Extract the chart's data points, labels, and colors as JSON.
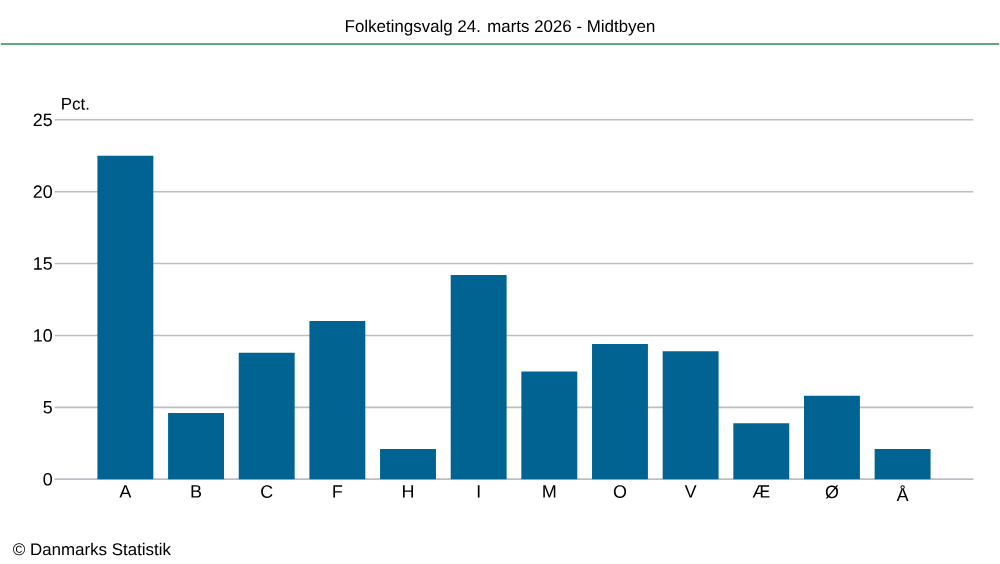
{
  "chart_data": {
    "type": "bar",
    "title": "Folketingsvalg 24. marts 2026 - Midtbyen",
    "ylabel": "Pct.",
    "categories": [
      "A",
      "B",
      "C",
      "F",
      "H",
      "I",
      "M",
      "O",
      "V",
      "Æ",
      "Ø",
      "Å"
    ],
    "values": [
      22.5,
      4.6,
      8.8,
      11.0,
      2.1,
      14.2,
      7.5,
      9.4,
      8.9,
      3.9,
      5.8,
      2.1
    ],
    "color": "#006391",
    "ylim": [
      0,
      25
    ],
    "yticks": [
      0,
      5,
      10,
      15,
      20,
      25
    ],
    "grid": "y",
    "annotations": [
      "© Danmarks Statistik"
    ]
  }
}
